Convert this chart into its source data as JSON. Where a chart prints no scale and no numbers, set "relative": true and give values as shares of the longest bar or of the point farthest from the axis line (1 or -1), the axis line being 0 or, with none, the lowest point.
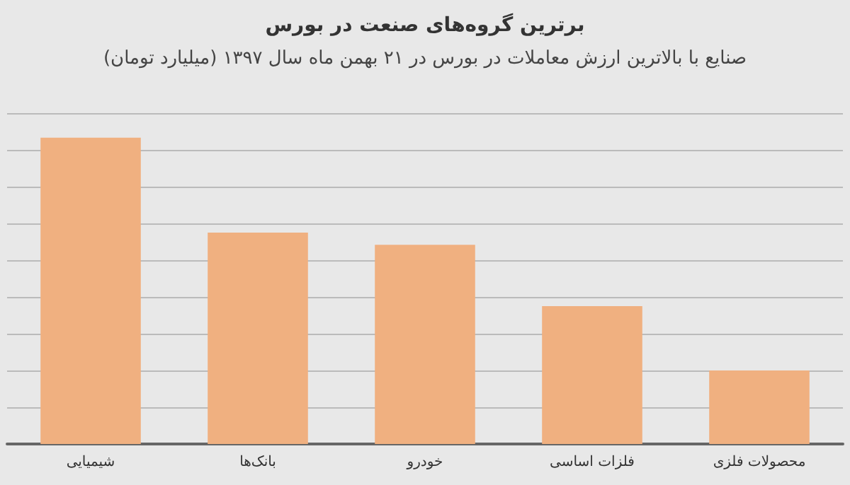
{
  "chart_data": {
    "type": "bar",
    "title": "برترین گروه‌های صنعت در بورس",
    "subtitle": "صنایع با بالاترین ارزش معاملات در بورس در ۲۱ بهمن ماه سال ۱۳۹۷ (میلیارد تومان)",
    "categories": [
      "شیمیایی",
      "بانک‌ها",
      "خودرو",
      "فلزات اساسی",
      "محصولات فلزی"
    ],
    "values": [
      1,
      0.69,
      0.65,
      0.45,
      0.24
    ],
    "color": "#f0b080",
    "relative": true,
    "grid": "y"
  }
}
